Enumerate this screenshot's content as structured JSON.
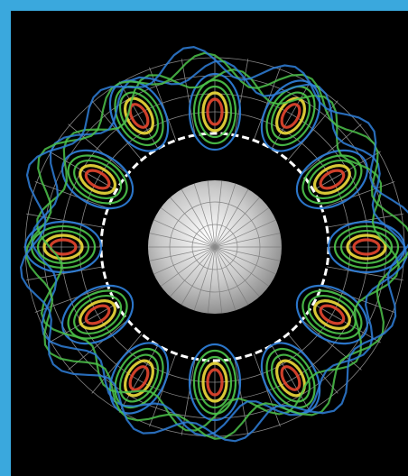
{
  "colors": {
    "background": "#000000",
    "frame_accent": "#3aa8dd",
    "grid_lines": "#cfcfcf",
    "core_sphere": "#bdbdbd",
    "inner_boundary": "#ffffff",
    "flow_slow": "#2f7fd9",
    "flow_medium": "#4cc24a",
    "flow_fast_yellow": "#e9d83a",
    "flow_fastest_red": "#e2452e"
  },
  "image": {
    "subject": "convection-flow-streamlines-in-spherical-shell",
    "core_label_icon": "gray-sphere"
  }
}
